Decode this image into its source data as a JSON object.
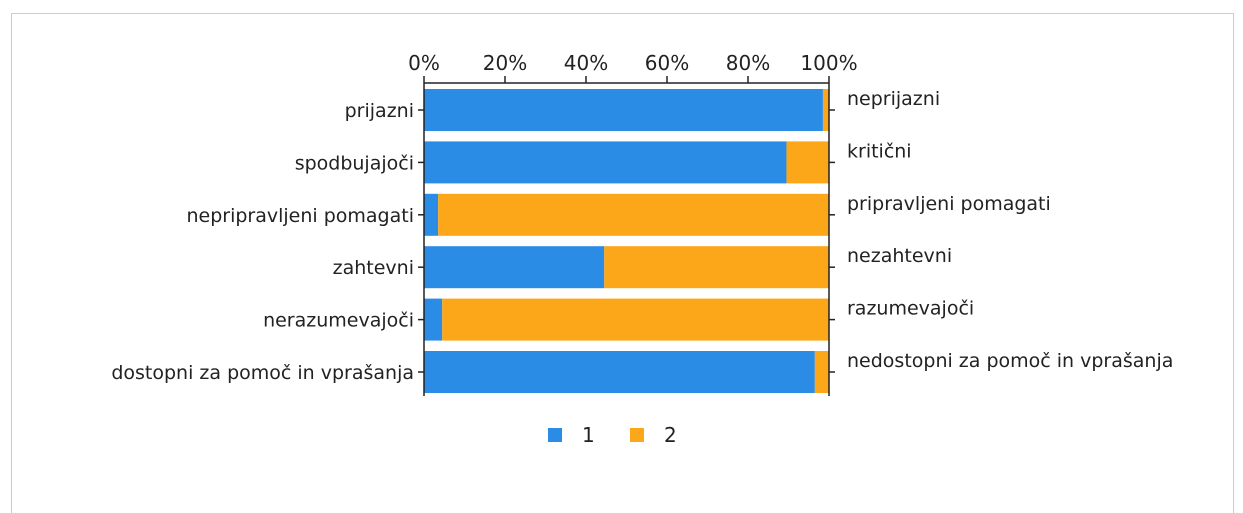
{
  "chart_data": {
    "type": "bar",
    "orientation": "horizontal",
    "stacked": true,
    "percent_stacked": true,
    "left_categories": [
      "prijazni",
      "spodbujajoči",
      "nepripravljeni pomagati",
      "zahtevni",
      "nerazumevajoči",
      "dostopni za pomoč in vprašanja"
    ],
    "right_categories": [
      "neprijazni",
      "kritični",
      "pripravljeni pomagati",
      "nezahtevni",
      "razumevajoči",
      "nedostopni za pomoč in vprašanja"
    ],
    "series": [
      {
        "name": "1",
        "color": "#2b8ce6",
        "values": [
          98.5,
          89.5,
          3.5,
          44.5,
          4.5,
          96.5
        ]
      },
      {
        "name": "2",
        "color": "#fba719",
        "values": [
          1.5,
          10.5,
          96.5,
          55.5,
          95.5,
          3.5
        ]
      }
    ],
    "x_tick_labels": [
      "0%",
      "20%",
      "40%",
      "60%",
      "80%",
      "100%"
    ],
    "xlim": [
      0,
      100
    ],
    "axis_position": "top",
    "legend_position": "bottom-center",
    "grid": false
  }
}
